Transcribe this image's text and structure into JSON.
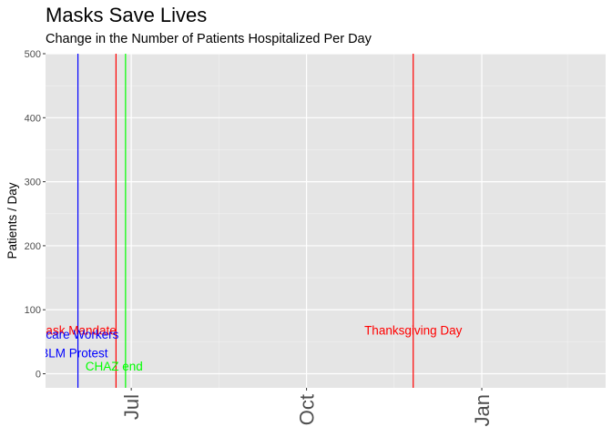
{
  "chart_data": {
    "type": "line",
    "title": "Masks Save Lives",
    "subtitle": "Change in the Number of Patients Hospitalized Per Day",
    "xlabel": "",
    "ylabel": "Patients / Day",
    "xlim": [
      "2020-05-17",
      "2021-03-07"
    ],
    "ylim": [
      -22,
      500
    ],
    "y_ticks": [
      0,
      100,
      200,
      300,
      400,
      500
    ],
    "x_ticks": [
      {
        "date": "2020-07-01",
        "label": "Jul"
      },
      {
        "date": "2020-10-01",
        "label": "Oct"
      },
      {
        "date": "2021-01-01",
        "label": "Jan"
      }
    ],
    "x_minor_ticks": [
      "2020-05-16",
      "2020-08-16",
      "2020-11-16",
      "2021-02-15"
    ],
    "grid": true,
    "series": [],
    "vlines": [
      {
        "date": "2020-06-03",
        "color": "#0000ff"
      },
      {
        "date": "2020-06-23",
        "color": "#ff0000"
      },
      {
        "date": "2020-06-28",
        "color": "#00ff00"
      },
      {
        "date": "2020-11-26",
        "color": "#ff0000"
      }
    ],
    "annotations": [
      {
        "text": "Mask Mandate",
        "date": "2020-06-02",
        "y": 68,
        "color": "#ff0000"
      },
      {
        "text": "Healthcare Workers",
        "date": "2020-05-27",
        "y": 62,
        "color": "#0000ff"
      },
      {
        "text": "BLM Protest",
        "date": "2020-06-01",
        "y": 33,
        "color": "#0000ff"
      },
      {
        "text": "CHAZ end",
        "date": "2020-06-22",
        "y": 12,
        "color": "#00ff00"
      },
      {
        "text": "Thanksgiving Day",
        "date": "2020-11-26",
        "y": 68,
        "color": "#ff0000"
      }
    ]
  }
}
